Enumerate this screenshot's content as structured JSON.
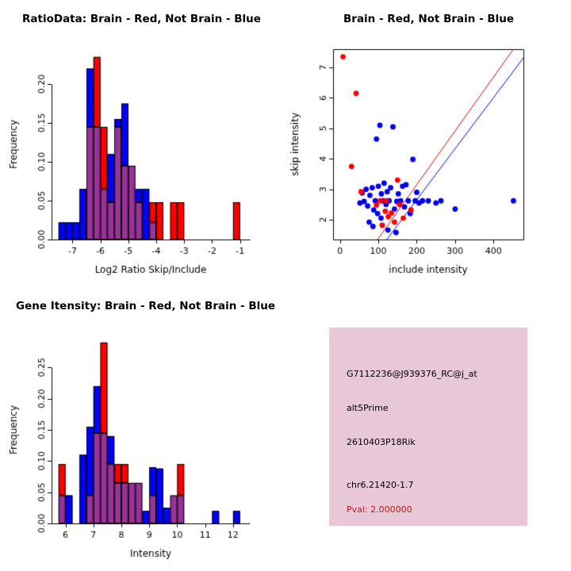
{
  "panels": {
    "ratio_hist_title": "RatioData: Brain - Red, Not Brain - Blue",
    "scatter_title": "Brain - Red, Not Brain - Blue",
    "gene_hist_title": "Gene Itensity: Brain - Red, Not Brain - Blue"
  },
  "info_box": {
    "background": "#e8c7d6",
    "lines": [
      {
        "text": "G7112236@J939376_RC@j_at",
        "color": "#000000"
      },
      {
        "text": "alt5Prime",
        "color": "#000000"
      },
      {
        "text": "2610403P18Rik",
        "color": "#000000"
      },
      {
        "text": "chr6.21420-1.7",
        "color": "#000000"
      },
      {
        "text": "Pval: 2.000000",
        "color": "#b22222"
      }
    ]
  },
  "chart_data": [
    {
      "id": "ratio_hist",
      "type": "bar",
      "title": "RatioData: Brain - Red, Not Brain - Blue",
      "xlabel": "Log2 Ratio Skip/Include",
      "ylabel": "Frequency",
      "xlim": [
        -7.75,
        -0.65
      ],
      "ylim": [
        0,
        0.245
      ],
      "xticks": [
        -7,
        -6,
        -5,
        -4,
        -3,
        -2,
        -1
      ],
      "xtick_labels": [
        "-7",
        "-6",
        "-5",
        "-4",
        "-3",
        "-2",
        "-1"
      ],
      "yticks": [
        0,
        0.05,
        0.1,
        0.15,
        0.2
      ],
      "ytick_labels": [
        "0.00",
        "0.05",
        "0.10",
        "0.15",
        "0.20"
      ],
      "colors": {
        "red": "#ff0000",
        "blue": "#0000ff",
        "overlap": "#993399"
      },
      "legend": {
        "red": "Brain",
        "blue": "Not Brain"
      },
      "bins": {
        "start": -7.5,
        "width": 0.25,
        "red": [
          0,
          0,
          0,
          0,
          0.145,
          0.235,
          0.145,
          0.048,
          0.145,
          0.095,
          0.095,
          0.048,
          0,
          0.048,
          0.048,
          0,
          0.048,
          0.048,
          0,
          0,
          0,
          0,
          0,
          0,
          0,
          0.048
        ],
        "blue": [
          0.022,
          0.022,
          0.022,
          0.065,
          0.22,
          0.145,
          0.065,
          0.11,
          0.155,
          0.175,
          0.095,
          0.065,
          0.065,
          0.022,
          0,
          0,
          0,
          0,
          0,
          0,
          0,
          0,
          0,
          0,
          0,
          0
        ]
      }
    },
    {
      "id": "scatter",
      "type": "scatter",
      "title": "Brain - Red, Not Brain - Blue",
      "xlabel": "include intensity",
      "ylabel": "skip intensity",
      "xlim": [
        -18,
        478
      ],
      "ylim": [
        1.35,
        7.6
      ],
      "xticks": [
        0,
        100,
        200,
        300,
        400
      ],
      "xtick_labels": [
        "0",
        "100",
        "200",
        "300",
        "400"
      ],
      "yticks": [
        2,
        3,
        4,
        5,
        6,
        7
      ],
      "ytick_labels": [
        "2",
        "3",
        "4",
        "5",
        "6",
        "7"
      ],
      "series": [
        {
          "name": "Not Brain",
          "color": "#0000ee",
          "points": [
            [
              52,
              2.55
            ],
            [
              58,
              2.88
            ],
            [
              63,
              2.6
            ],
            [
              68,
              3.0
            ],
            [
              72,
              2.45
            ],
            [
              76,
              1.92
            ],
            [
              78,
              2.8
            ],
            [
              84,
              3.05
            ],
            [
              86,
              1.78
            ],
            [
              88,
              2.32
            ],
            [
              92,
              2.62
            ],
            [
              95,
              4.65
            ],
            [
              98,
              2.2
            ],
            [
              100,
              3.1
            ],
            [
              104,
              5.1
            ],
            [
              107,
              2.05
            ],
            [
              108,
              2.85
            ],
            [
              112,
              2.62
            ],
            [
              115,
              3.2
            ],
            [
              120,
              2.5
            ],
            [
              123,
              2.92
            ],
            [
              125,
              1.66
            ],
            [
              128,
              2.62
            ],
            [
              132,
              3.05
            ],
            [
              138,
              5.05
            ],
            [
              142,
              2.35
            ],
            [
              146,
              1.58
            ],
            [
              148,
              2.6
            ],
            [
              152,
              2.85
            ],
            [
              158,
              2.62
            ],
            [
              163,
              3.1
            ],
            [
              168,
              2.42
            ],
            [
              172,
              3.15
            ],
            [
              178,
              2.62
            ],
            [
              183,
              2.2
            ],
            [
              190,
              3.98
            ],
            [
              196,
              2.62
            ],
            [
              200,
              2.9
            ],
            [
              206,
              2.55
            ],
            [
              215,
              2.62
            ],
            [
              230,
              2.62
            ],
            [
              250,
              2.55
            ],
            [
              263,
              2.62
            ],
            [
              300,
              2.35
            ],
            [
              452,
              2.62
            ]
          ]
        },
        {
          "name": "Brain",
          "color": "#ff0000",
          "points": [
            [
              8,
              7.35
            ],
            [
              42,
              6.15
            ],
            [
              30,
              3.75
            ],
            [
              55,
              2.92
            ],
            [
              95,
              2.48
            ],
            [
              105,
              2.62
            ],
            [
              110,
              1.82
            ],
            [
              118,
              2.28
            ],
            [
              126,
              2.1
            ],
            [
              134,
              2.22
            ],
            [
              142,
              1.92
            ],
            [
              150,
              3.3
            ],
            [
              155,
              2.5
            ],
            [
              165,
              2.05
            ],
            [
              185,
              2.32
            ],
            [
              120,
              2.62
            ]
          ]
        }
      ],
      "lines": [
        {
          "name": "brain-fit-line",
          "color": "#dd0000",
          "from": [
            98,
            1.35
          ],
          "to": [
            452,
            7.6
          ]
        },
        {
          "name": "notbrain-fit-line",
          "color": "#0000dd",
          "from": [
            122,
            1.35
          ],
          "to": [
            495,
            7.6
          ]
        }
      ]
    },
    {
      "id": "gene_hist",
      "type": "bar",
      "title": "Gene Itensity: Brain - Red, Not Brain - Blue",
      "xlabel": "Intensity",
      "ylabel": "Frequency",
      "xlim": [
        5.5,
        12.6
      ],
      "ylim": [
        0,
        0.3
      ],
      "xticks": [
        6,
        7,
        8,
        9,
        10,
        11,
        12
      ],
      "xtick_labels": [
        "6",
        "7",
        "8",
        "9",
        "10",
        "11",
        "12"
      ],
      "yticks": [
        0,
        0.05,
        0.1,
        0.15,
        0.2,
        0.25
      ],
      "ytick_labels": [
        "0.00",
        "0.05",
        "0.10",
        "0.15",
        "0.20",
        "0.25"
      ],
      "colors": {
        "red": "#ff0000",
        "blue": "#0000ff",
        "overlap": "#993399"
      },
      "legend": {
        "red": "Brain",
        "blue": "Not Brain"
      },
      "bins": {
        "start": 5.75,
        "width": 0.25,
        "red": [
          0.095,
          0,
          0,
          0,
          0.045,
          0.145,
          0.29,
          0.095,
          0.095,
          0.095,
          0.065,
          0.065,
          0,
          0.045,
          0,
          0,
          0.045,
          0.095,
          0,
          0,
          0,
          0,
          0,
          0,
          0,
          0
        ],
        "blue": [
          0.045,
          0.045,
          0,
          0.11,
          0.155,
          0.22,
          0.145,
          0.14,
          0.065,
          0.065,
          0.065,
          0.065,
          0.02,
          0.09,
          0.088,
          0.025,
          0.045,
          0.045,
          0,
          0,
          0,
          0,
          0.02,
          0,
          0,
          0.02
        ]
      }
    }
  ]
}
